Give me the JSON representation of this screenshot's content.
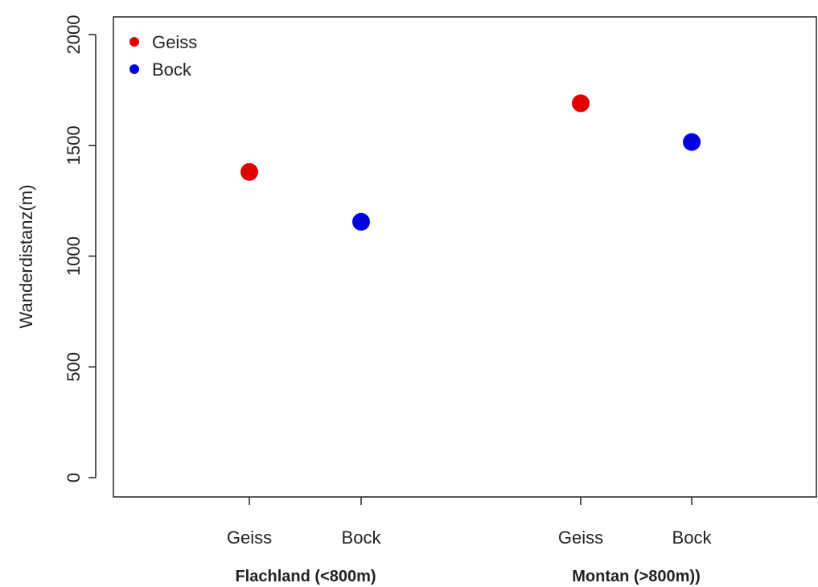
{
  "chart_data": {
    "type": "scatter",
    "ylabel": "Wanderdistanz(m)",
    "ylim": [
      0,
      2000
    ],
    "yticks": [
      0,
      500,
      1000,
      1500,
      2000
    ],
    "grid": false,
    "legend_position": "top-left",
    "series": [
      {
        "name": "Geiss",
        "color": "#e00000"
      },
      {
        "name": "Bock",
        "color": "#0000e0"
      }
    ],
    "groups": [
      {
        "label": "Flachland (<800m)"
      },
      {
        "label": "Montan (>800m))"
      }
    ],
    "points": [
      {
        "group": 0,
        "category": "Geiss",
        "series": "Geiss",
        "y": 1380
      },
      {
        "group": 0,
        "category": "Bock",
        "series": "Bock",
        "y": 1155
      },
      {
        "group": 1,
        "category": "Geiss",
        "series": "Geiss",
        "y": 1690
      },
      {
        "group": 1,
        "category": "Bock",
        "series": "Bock",
        "y": 1515
      }
    ]
  }
}
